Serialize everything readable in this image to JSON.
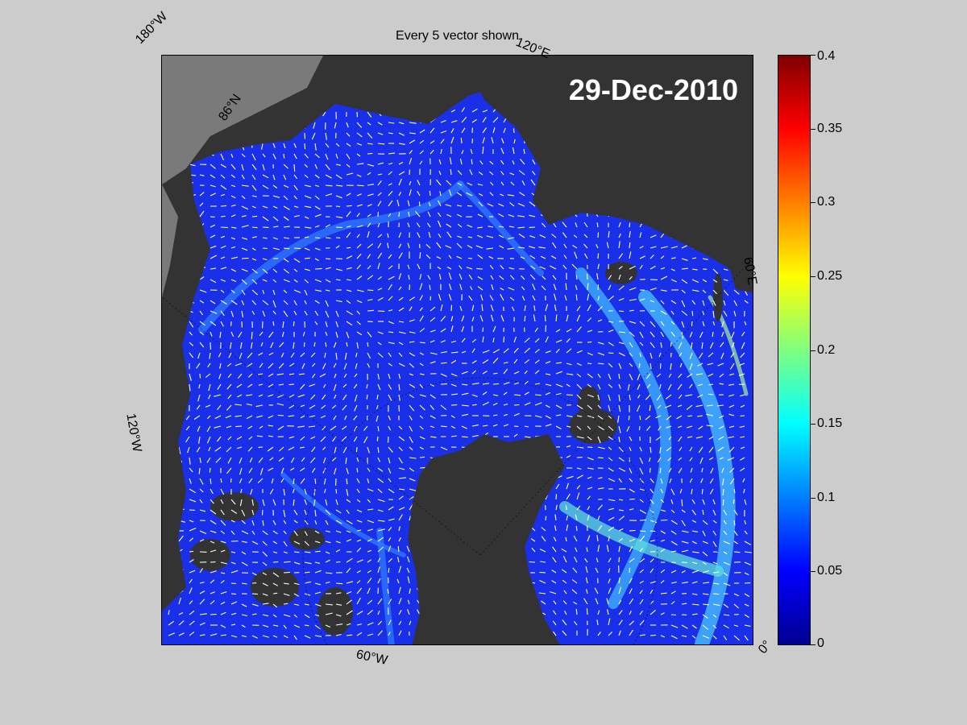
{
  "title": "Every 5 vector shown",
  "date": "29-Dec-2010",
  "map_labels": {
    "lon_180w": "180°W",
    "lon_120e": "120°E",
    "lon_60e": "60°E",
    "lon_120w": "120°W",
    "lon_60w": "60°W",
    "lon_0": "0°",
    "lat_86n": "86°N"
  },
  "colorbar": {
    "min": 0,
    "max": 0.4,
    "colormap": "jet",
    "ticks": [
      {
        "value": 0.4,
        "label": "0.4"
      },
      {
        "value": 0.35,
        "label": "0.35"
      },
      {
        "value": 0.3,
        "label": "0.3"
      },
      {
        "value": 0.25,
        "label": "0.25"
      },
      {
        "value": 0.2,
        "label": "0.2"
      },
      {
        "value": 0.15,
        "label": "0.15"
      },
      {
        "value": 0.1,
        "label": "0.1"
      },
      {
        "value": 0.05,
        "label": "0.05"
      },
      {
        "value": 0,
        "label": "0"
      }
    ]
  },
  "colors": {
    "ocean": "#1a2fe8",
    "land": "#333333",
    "outside": "#7a7a7a",
    "vector": "#ffffff"
  }
}
